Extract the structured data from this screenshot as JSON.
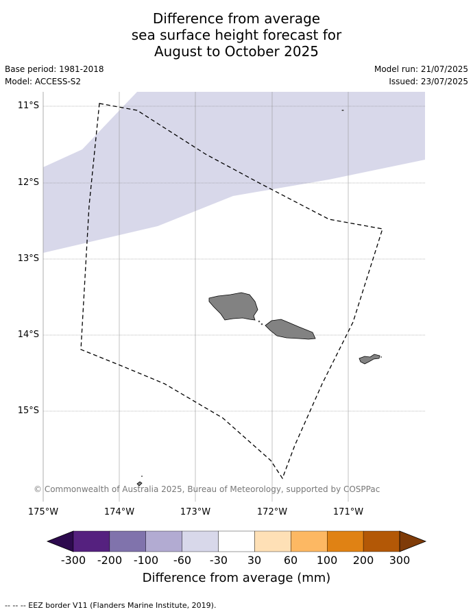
{
  "title": {
    "line1": "Difference from average",
    "line2": "sea surface height forecast for",
    "line3": "August to October 2025"
  },
  "meta": {
    "base_period": "Base period: 1981-2018",
    "model": "Model: ACCESS-S2",
    "model_run": "Model run: 21/07/2025",
    "issued": "Issued: 23/07/2025"
  },
  "map": {
    "lat_labels": [
      "11°S",
      "12°S",
      "13°S",
      "14°S",
      "15°S"
    ],
    "lon_labels": [
      "175°W",
      "174°W",
      "173°W",
      "172°W",
      "171°W"
    ],
    "shading_color": "#d8d8ea",
    "land_color": "#828282",
    "copyright": "© Commonwealth of Australia 2025, Bureau of Meteorology, supported by COSPPac"
  },
  "colorbar": {
    "label": "Difference from average (mm)",
    "ticks": [
      "-300",
      "-200",
      "-100",
      "-60",
      "-30",
      "30",
      "60",
      "100",
      "200",
      "300"
    ],
    "colors": [
      "#2d0a4e",
      "#55217f",
      "#8073ac",
      "#b2abd2",
      "#d8d8ea",
      "#ffffff",
      "#fee0b6",
      "#fdb863",
      "#e08214",
      "#b35806",
      "#7f3b08"
    ]
  },
  "footnote": "-- -- -- EEZ border V11 (Flanders Marine Institute, 2019)."
}
